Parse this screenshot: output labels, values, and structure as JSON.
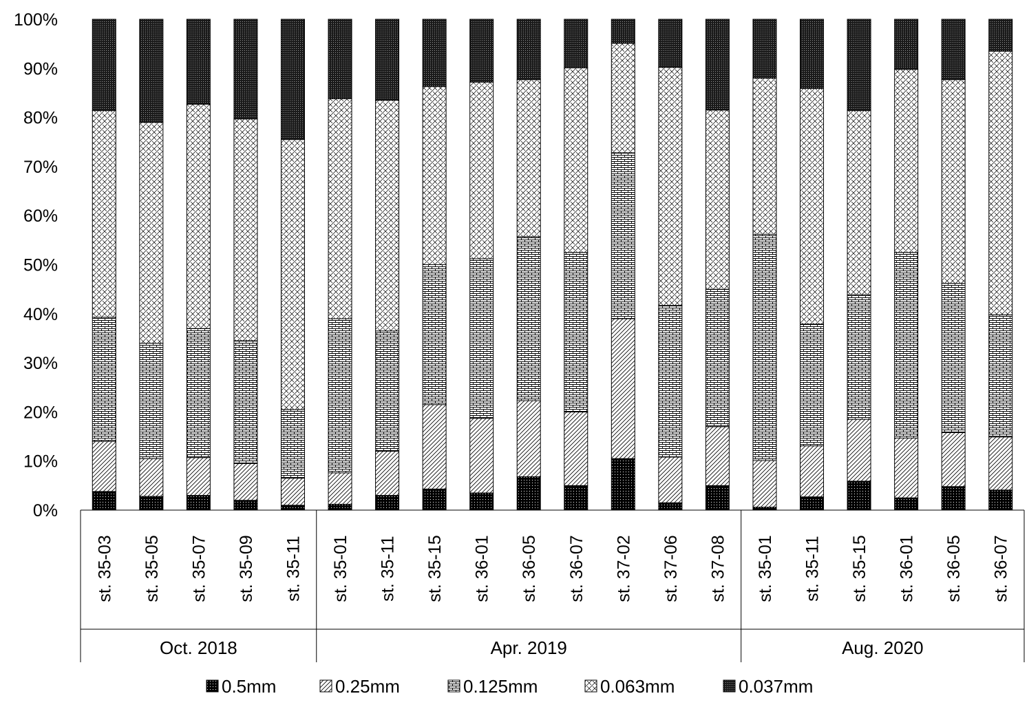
{
  "chart_data": {
    "type": "bar",
    "stacked": true,
    "percent": true,
    "title": "",
    "xlabel": "",
    "ylabel": "",
    "ylim": [
      0,
      100
    ],
    "yticks": [
      "0%",
      "10%",
      "20%",
      "30%",
      "40%",
      "50%",
      "60%",
      "70%",
      "80%",
      "90%",
      "100%"
    ],
    "grid": false,
    "legend_position": "bottom",
    "categories": [
      "st. 35-03",
      "st. 35-05",
      "st. 35-07",
      "st. 35-09",
      "st. 35-11",
      "st. 35-01",
      "st. 35-11",
      "st. 35-15",
      "st. 36-01",
      "st. 36-05",
      "st. 36-07",
      "st. 37-02",
      "st. 37-06",
      "st. 37-08",
      "st. 35-01",
      "st. 35-11",
      "st. 35-15",
      "st. 36-01",
      "st. 36-05",
      "st. 36-07"
    ],
    "groups": [
      {
        "label": "Oct. 2018",
        "count": 5
      },
      {
        "label": "Apr. 2019",
        "count": 9
      },
      {
        "label": "Aug. 2020",
        "count": 6
      }
    ],
    "series": [
      {
        "name": "0.5mm",
        "pattern": "dots",
        "values": [
          3.8,
          2.8,
          3.0,
          2.0,
          1.0,
          1.2,
          3.0,
          4.3,
          3.5,
          6.8,
          5.0,
          10.5,
          1.5,
          5.0,
          0.6,
          2.7,
          5.9,
          2.5,
          4.8,
          4.1
        ]
      },
      {
        "name": "0.25mm",
        "pattern": "diagonal",
        "values": [
          10.2,
          7.7,
          7.7,
          7.5,
          5.5,
          6.4,
          9.0,
          17.2,
          15.2,
          15.5,
          15.0,
          28.5,
          9.3,
          12.0,
          9.5,
          10.4,
          12.6,
          12.2,
          11.0,
          10.8
        ]
      },
      {
        "name": "0.125mm",
        "pattern": "brick",
        "values": [
          25.3,
          23.5,
          26.3,
          25.0,
          14.0,
          31.4,
          24.5,
          28.5,
          32.5,
          33.4,
          32.5,
          33.8,
          30.9,
          28.0,
          46.1,
          24.8,
          25.4,
          37.8,
          30.4,
          24.9
        ]
      },
      {
        "name": "0.063mm",
        "pattern": "weave",
        "values": [
          42.1,
          45.0,
          45.7,
          45.2,
          55.0,
          44.8,
          47.0,
          36.3,
          36.0,
          32.0,
          37.6,
          22.3,
          48.5,
          36.5,
          31.8,
          48.0,
          37.5,
          37.3,
          41.5,
          53.7
        ]
      },
      {
        "name": "0.037mm",
        "pattern": "checker",
        "values": [
          18.6,
          21.0,
          17.3,
          20.3,
          24.5,
          16.2,
          16.5,
          13.7,
          12.8,
          12.3,
          9.9,
          4.9,
          9.8,
          18.5,
          12.0,
          14.1,
          18.6,
          10.2,
          12.3,
          6.5
        ]
      }
    ]
  }
}
